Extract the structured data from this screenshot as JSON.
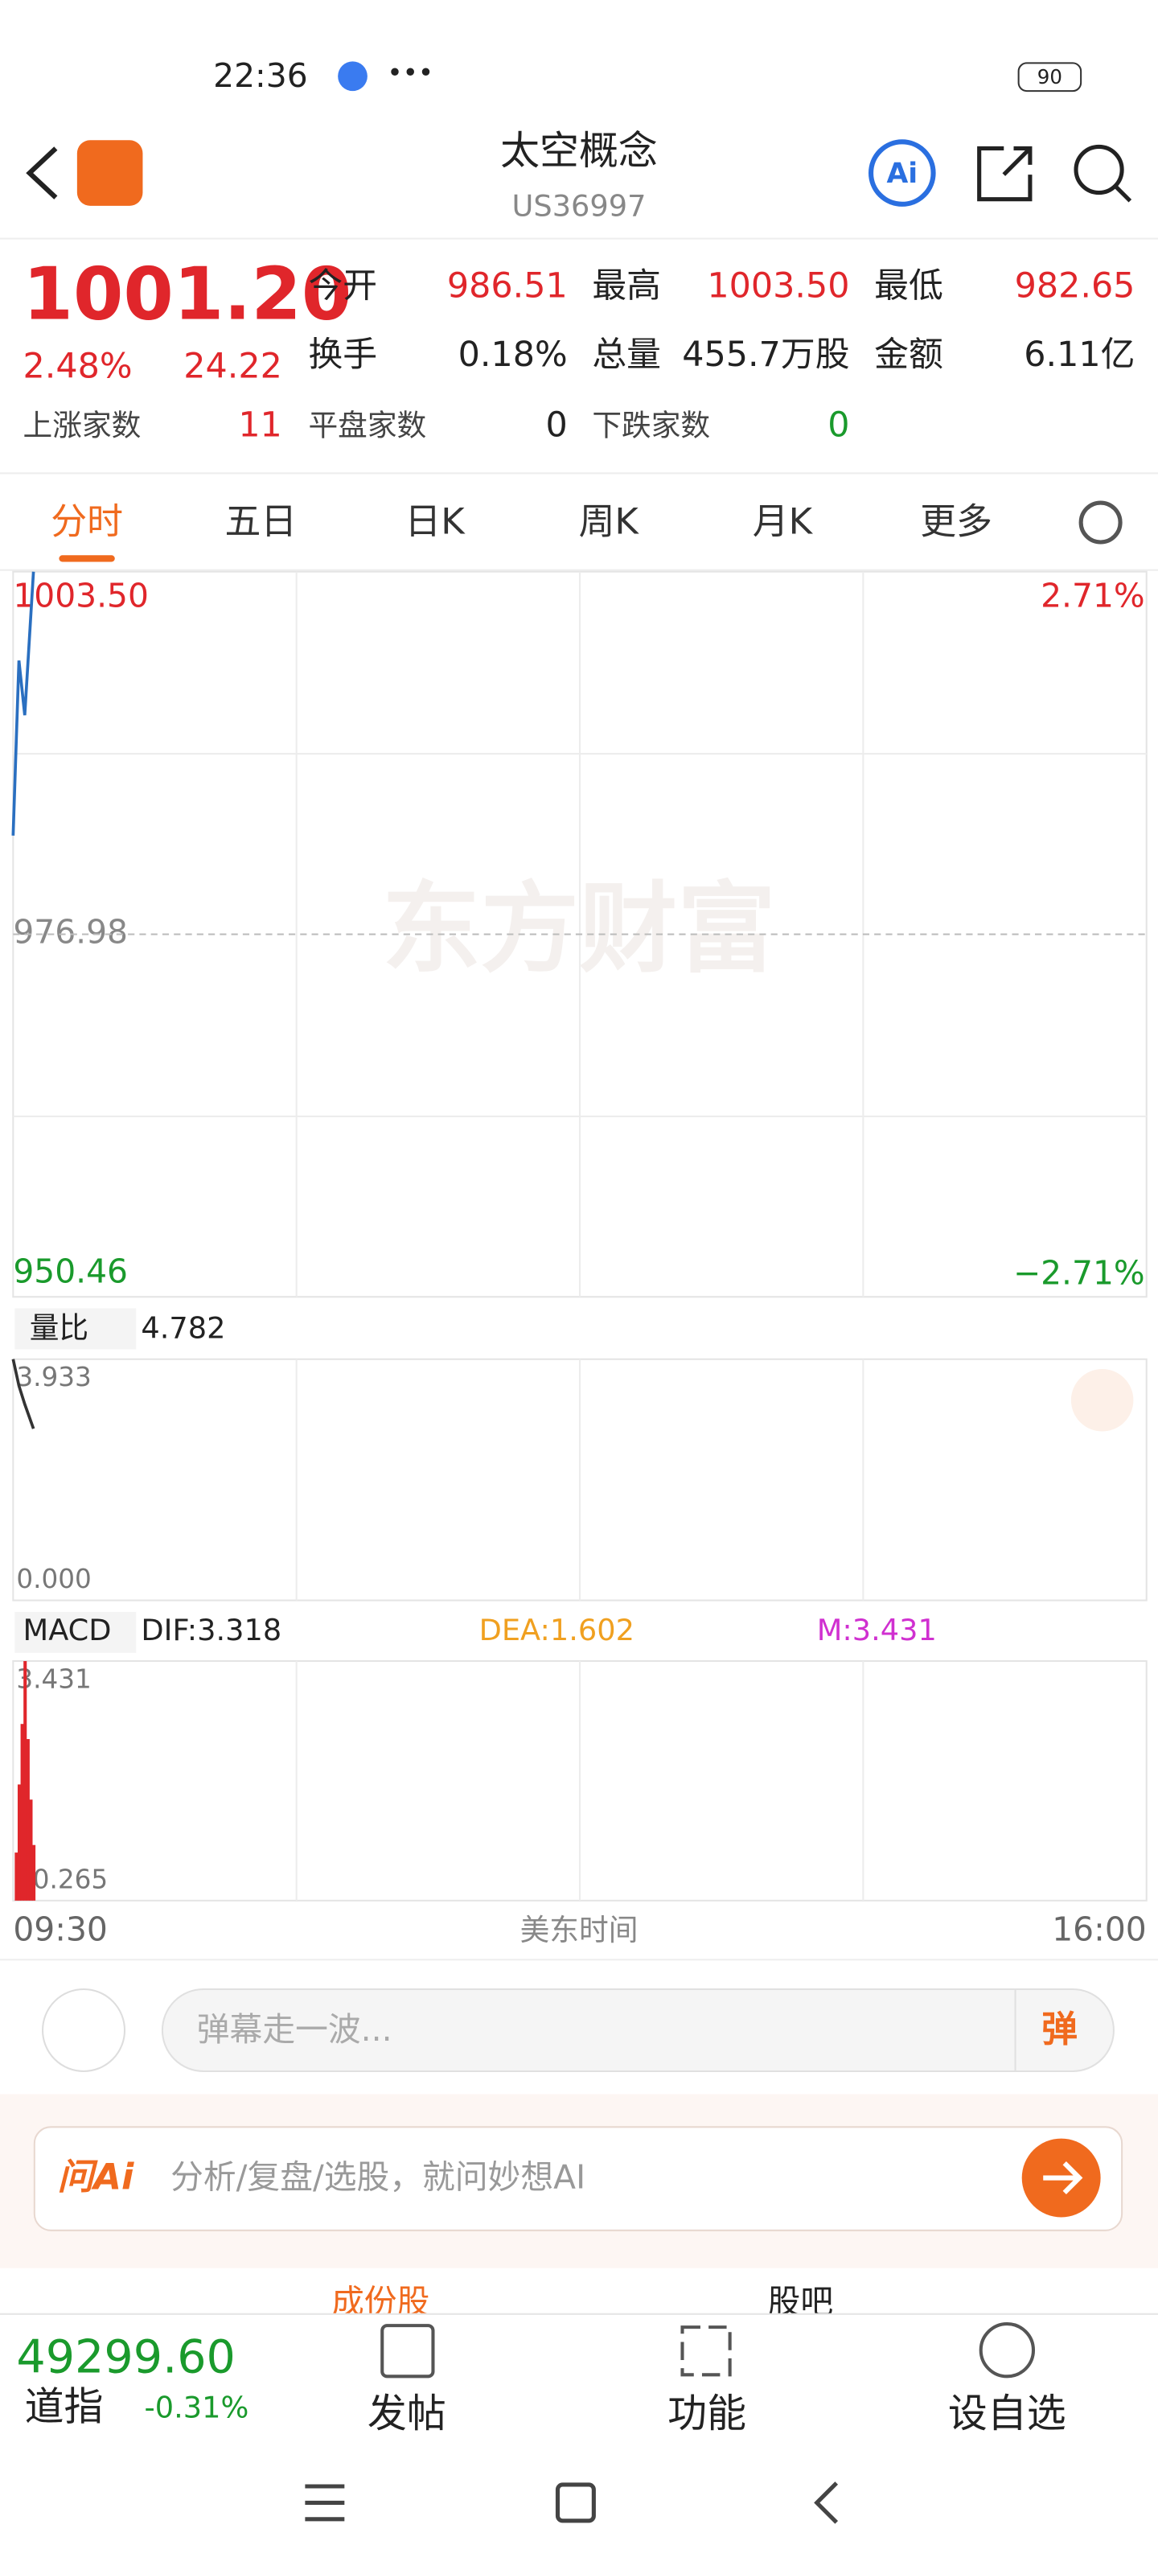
{
  "status": {
    "time": "22:36",
    "battery": "90"
  },
  "header": {
    "title": "太空概念",
    "code": "US36997"
  },
  "quote": {
    "price": "1001.20",
    "change_pct": "2.48%",
    "change": "24.22",
    "stats": [
      {
        "label": "今开",
        "value": "986.51"
      },
      {
        "label": "最高",
        "value": "1003.50"
      },
      {
        "label": "最低",
        "value": "982.65"
      },
      {
        "label": "换手",
        "value": "0.18%"
      },
      {
        "label": "总量",
        "value": "455.7万股"
      },
      {
        "label": "金额",
        "value": "6.11亿"
      },
      {
        "label": "上涨家数",
        "value": "11"
      },
      {
        "label": "平盘家数",
        "value": "0"
      },
      {
        "label": "下跌家数",
        "value": "0"
      }
    ]
  },
  "tabs": [
    "分时",
    "五日",
    "日K",
    "周K",
    "月K",
    "更多"
  ],
  "chart": {
    "watermark": "东方财富",
    "price_ticks": [
      {
        "value": 1003.5,
        "label": "1003.50"
      },
      {
        "value": 976.98,
        "label": "976.98"
      },
      {
        "value": 950.46,
        "label": "950.46"
      }
    ],
    "pct_high": "2.71%",
    "pct_low": "−2.71%",
    "x_ticks": [
      "09:30",
      "16:00"
    ],
    "time_label": "美东时间",
    "x": [
      "09:30",
      "09:32",
      "09:34",
      "09:37"
    ],
    "price": [
      984.2,
      997.0,
      993.0,
      1003.5
    ],
    "volume": {
      "label": "量比",
      "value": "4.782",
      "ticks": [
        {
          "value": 3.933,
          "label": "3.933"
        },
        {
          "value": 0,
          "label": "0.000"
        }
      ],
      "values": [
        3.933,
        3.5,
        3.2,
        2.8
      ]
    },
    "macd": {
      "label": "MACD",
      "dif": "DIF:3.318",
      "dea": "DEA:1.602",
      "m": "M:3.431",
      "ticks": [
        {
          "value": 3.431,
          "label": "3.431"
        },
        {
          "value": 0.265,
          "label": "0.265"
        }
      ],
      "x": [
        "09:30",
        "09:31",
        "09:32",
        "09:33",
        "09:34",
        "09:35",
        "09:36"
      ],
      "values": [
        0.9,
        1.8,
        2.6,
        3.431,
        2.4,
        1.6,
        1.0
      ]
    }
  },
  "bottom": {
    "danmu_placeholder": "弹幕走一波...",
    "danmu_button": "弹",
    "ai_logo": "问Ai",
    "ai_prompt": "分析/复盘/选股，就问妙想AI",
    "tabs": [
      "成份股",
      "股吧"
    ]
  },
  "footer": {
    "index_value": "49299.60",
    "index_name": "道指",
    "index_change": "-0.31%",
    "nav": [
      "发帖",
      "功能",
      "设自选"
    ]
  }
}
